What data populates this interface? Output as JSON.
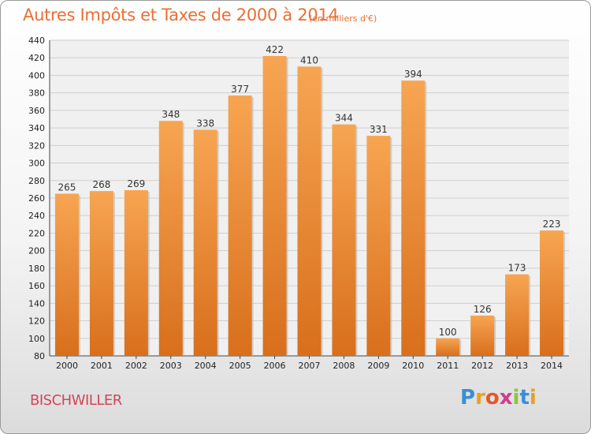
{
  "chart_data": {
    "type": "bar",
    "title": "Autres Impôts et Taxes de 2000 à 2014",
    "subtitle": "(en milliers d'€)",
    "categories": [
      "2000",
      "2001",
      "2002",
      "2003",
      "2004",
      "2005",
      "2006",
      "2007",
      "2008",
      "2009",
      "2010",
      "2011",
      "2012",
      "2013",
      "2014"
    ],
    "values": [
      265,
      268,
      269,
      348,
      338,
      377,
      422,
      410,
      344,
      331,
      394,
      100,
      126,
      173,
      223
    ],
    "ylim": [
      80,
      440
    ],
    "yticks": [
      80,
      100,
      120,
      140,
      160,
      180,
      200,
      220,
      240,
      260,
      280,
      300,
      320,
      340,
      360,
      380,
      400,
      420,
      440
    ],
    "grid": true,
    "bar_color": "#f19a44",
    "title_color": "#ea6f35"
  },
  "footer": {
    "city": "BISCHWILLER",
    "logo": {
      "letters": [
        "P",
        "r",
        "o",
        "x",
        "i",
        "t",
        "i"
      ],
      "colors": [
        "#3a8fd4",
        "#e8a21f",
        "#e8562a",
        "#d43a8f",
        "#8cc63f",
        "#3a8fd4",
        "#e8a21f"
      ]
    }
  }
}
